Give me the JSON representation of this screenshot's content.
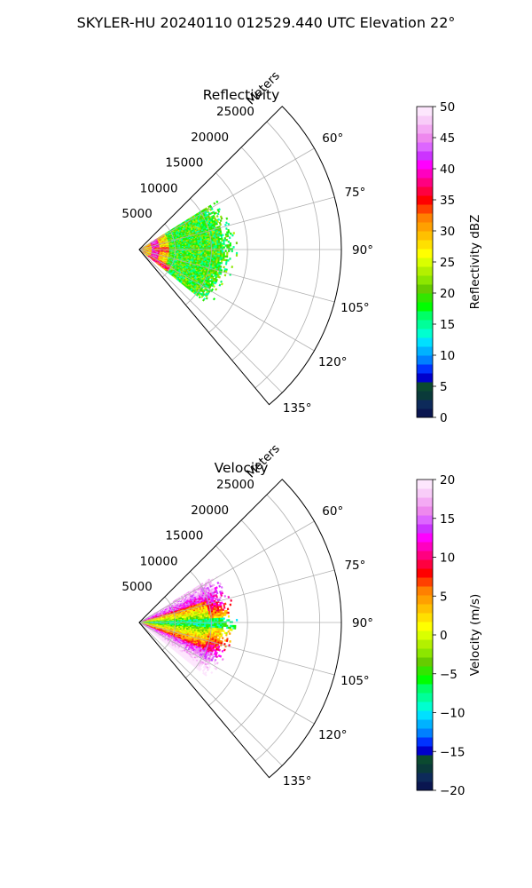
{
  "figure": {
    "title": "SKYLER-HU  20240110  012529.440 UTC Elevation 22°"
  },
  "chart_data": [
    {
      "type": "heatmap",
      "subtype": "polar-sector (PPI)",
      "title": "Reflectivity",
      "radial_label": "Meters",
      "radial_ticks": [
        5000,
        10000,
        15000,
        20000,
        25000
      ],
      "radial_tick_labels": [
        "5000",
        "10000",
        "15000",
        "20000",
        "25000"
      ],
      "rlim": [
        0,
        28000
      ],
      "theta_ticks": [
        60,
        75,
        90,
        105,
        120,
        135
      ],
      "theta_tick_labels": [
        "60°",
        "75°",
        "90°",
        "105°",
        "120°",
        "135°"
      ],
      "theta_range_deg": [
        45,
        140
      ],
      "grid": true,
      "data_extent_m": 13500,
      "colorbar": {
        "label": "Reflectivity dBZ",
        "range": [
          0,
          50
        ],
        "ticks": [
          0,
          5,
          10,
          15,
          20,
          25,
          30,
          35,
          40,
          45,
          50
        ],
        "tick_labels": [
          "0",
          "5",
          "10",
          "15",
          "20",
          "25",
          "30",
          "35",
          "40",
          "45",
          "50"
        ],
        "colors": [
          "#0a1650",
          "#0d2a5a",
          "#0a3a3a",
          "#0b4a30",
          "#0000cc",
          "#0033ff",
          "#0080ff",
          "#00b2ff",
          "#00e0ff",
          "#00ffd0",
          "#00ff99",
          "#00ff66",
          "#00ff00",
          "#33e600",
          "#66cc00",
          "#8ce600",
          "#b3f000",
          "#d9ff00",
          "#ffff00",
          "#ffe000",
          "#ffc000",
          "#ffa000",
          "#ff8000",
          "#ff4000",
          "#ff0000",
          "#ff0040",
          "#ff0080",
          "#ff00c0",
          "#ff00ff",
          "#cc33ff",
          "#dd66ff",
          "#ee88ee",
          "#f4aaf4",
          "#f8ccf8",
          "#fde6fd"
        ]
      },
      "field_profile": {
        "base_value": 19,
        "core_value": 30,
        "band_radius_m": 2200,
        "band_value": 40,
        "noise": 5
      }
    },
    {
      "type": "heatmap",
      "subtype": "polar-sector (PPI)",
      "title": "Velocity",
      "radial_label": "Meters",
      "radial_ticks": [
        5000,
        10000,
        15000,
        20000,
        25000
      ],
      "radial_tick_labels": [
        "5000",
        "10000",
        "15000",
        "20000",
        "25000"
      ],
      "rlim": [
        0,
        28000
      ],
      "theta_ticks": [
        60,
        75,
        90,
        105,
        120,
        135
      ],
      "theta_tick_labels": [
        "60°",
        "75°",
        "90°",
        "105°",
        "120°",
        "135°"
      ],
      "theta_range_deg": [
        45,
        140
      ],
      "grid": true,
      "data_extent_m": 13500,
      "colorbar": {
        "label": "Velocity (m/s)",
        "range": [
          -20,
          20
        ],
        "ticks": [
          -20,
          -15,
          -10,
          -5,
          0,
          5,
          10,
          15,
          20
        ],
        "tick_labels": [
          "−20",
          "−15",
          "−10",
          "−5",
          "0",
          "5",
          "10",
          "15",
          "20"
        ],
        "colors": [
          "#0a1650",
          "#0d2a5a",
          "#0a3a3a",
          "#0b4a30",
          "#0000cc",
          "#0033ff",
          "#0080ff",
          "#00b2ff",
          "#00e0ff",
          "#00ffd0",
          "#00ff99",
          "#00ff66",
          "#00ff00",
          "#33e600",
          "#66cc00",
          "#8ce600",
          "#b3f000",
          "#d9ff00",
          "#ffff00",
          "#ffe000",
          "#ffc000",
          "#ffa000",
          "#ff8000",
          "#ff4000",
          "#ff0000",
          "#ff0040",
          "#ff0080",
          "#ff00c0",
          "#ff00ff",
          "#cc33ff",
          "#dd66ff",
          "#ee88ee",
          "#f4aaf4",
          "#f8ccf8",
          "#fde6fd"
        ]
      },
      "field_profile": {
        "north_value": 11,
        "south_value": 12,
        "center_value": -7,
        "noise": 3
      }
    }
  ]
}
